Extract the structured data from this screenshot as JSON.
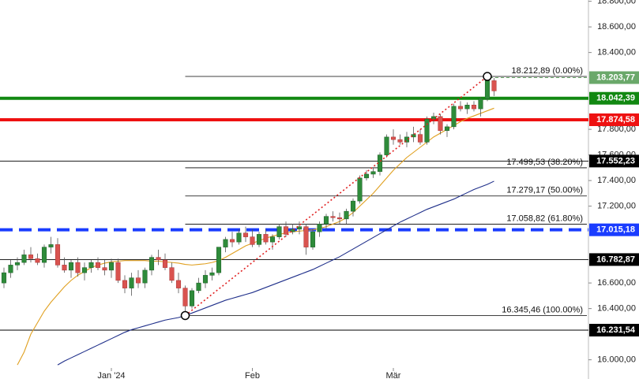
{
  "chart_data": {
    "type": "candlestick",
    "categories": [
      null,
      null,
      null,
      null,
      null,
      null,
      null,
      null,
      null,
      null,
      null,
      null,
      null,
      null,
      null,
      null,
      "Jan '24",
      null,
      null,
      null,
      null,
      null,
      null,
      null,
      null,
      null,
      null,
      null,
      null,
      null,
      null,
      null,
      null,
      null,
      null,
      null,
      null,
      "Feb",
      null,
      null,
      null,
      null,
      null,
      null,
      null,
      null,
      null,
      null,
      null,
      null,
      null,
      null,
      null,
      null,
      null,
      null,
      null,
      null,
      "Mär",
      null,
      null,
      null,
      null,
      null,
      null,
      null,
      null,
      null,
      null,
      null,
      null,
      null,
      null,
      null
    ],
    "open": [
      16600,
      16680,
      16740,
      16760,
      16820,
      16790,
      16760,
      16880,
      16900,
      16740,
      16700,
      16760,
      16680,
      16720,
      16760,
      16720,
      16700,
      16760,
      16620,
      16560,
      16640,
      16600,
      16700,
      16800,
      16780,
      16720,
      16620,
      16560,
      16420,
      16540,
      16600,
      16660,
      16680,
      16880,
      16940,
      16920,
      16990,
      16960,
      16900,
      16980,
      16920,
      16960,
      17040,
      17000,
      17020,
      17040,
      16880,
      17000,
      17060,
      17120,
      17110,
      17100,
      17160,
      17240,
      17420,
      17450,
      17470,
      17600,
      17740,
      17720,
      17700,
      17740,
      17760,
      17700,
      17880,
      17900,
      17790,
      17820,
      17980,
      17960,
      17990,
      17960,
      18040,
      18180
    ],
    "high": [
      16720,
      16780,
      16800,
      16860,
      16880,
      16830,
      16900,
      16960,
      16950,
      16800,
      16780,
      16800,
      16760,
      16780,
      16800,
      16780,
      16790,
      16790,
      16660,
      16680,
      16700,
      16720,
      16820,
      16860,
      16830,
      16760,
      16680,
      16580,
      16560,
      16640,
      16700,
      16720,
      16860,
      16960,
      17000,
      17020,
      17040,
      17020,
      17000,
      17020,
      16980,
      17060,
      17080,
      17060,
      17080,
      17060,
      17020,
      17080,
      17140,
      17160,
      17150,
      17180,
      17260,
      17440,
      17480,
      17500,
      17620,
      17760,
      17800,
      17760,
      17780,
      17820,
      17800,
      17900,
      17930,
      17920,
      17840,
      18000,
      18020,
      18010,
      18020,
      18050,
      18212,
      18200
    ],
    "low": [
      16560,
      16640,
      16700,
      16740,
      16760,
      16740,
      16720,
      16830,
      16720,
      16680,
      16640,
      16650,
      16620,
      16680,
      16700,
      16660,
      16640,
      16600,
      16520,
      16500,
      16560,
      16560,
      16660,
      16740,
      16700,
      16600,
      16520,
      16350,
      16400,
      16520,
      16560,
      16620,
      16660,
      16840,
      16880,
      16900,
      16920,
      16880,
      16880,
      16900,
      16860,
      16940,
      16960,
      16980,
      16980,
      16820,
      16860,
      16960,
      17020,
      17080,
      17060,
      17060,
      17120,
      17220,
      17400,
      17420,
      17440,
      17580,
      17680,
      17680,
      17660,
      17700,
      17680,
      17680,
      17840,
      17760,
      17740,
      17800,
      17940,
      17920,
      17940,
      17900,
      18020,
      18060
    ],
    "close": [
      16680,
      16740,
      16760,
      16820,
      16790,
      16760,
      16880,
      16900,
      16740,
      16700,
      16760,
      16680,
      16720,
      16760,
      16720,
      16700,
      16760,
      16620,
      16560,
      16640,
      16600,
      16700,
      16800,
      16780,
      16720,
      16620,
      16560,
      16420,
      16540,
      16600,
      16660,
      16680,
      16880,
      16940,
      16920,
      16990,
      16960,
      16900,
      16980,
      16920,
      16960,
      17040,
      16980,
      17020,
      17040,
      16880,
      17000,
      17060,
      17120,
      17110,
      17100,
      17160,
      17240,
      17420,
      17450,
      17470,
      17600,
      17740,
      17720,
      17700,
      17740,
      17760,
      17700,
      17880,
      17900,
      17790,
      17820,
      17980,
      17960,
      17990,
      17960,
      18040,
      18180,
      18100
    ],
    "up_color": "#2e8b3a",
    "down_color": "#d9534f",
    "lines": [
      {
        "color": "#e0a020",
        "values": [
          null,
          null,
          15960,
          16060,
          16200,
          16290,
          16380,
          16450,
          16510,
          16570,
          16620,
          16660,
          16690,
          16720,
          16740,
          16755,
          16765,
          16770,
          16775,
          16775,
          16775,
          16775,
          16770,
          16770,
          16765,
          16760,
          16755,
          16745,
          16740,
          16745,
          16750,
          16760,
          16775,
          16800,
          16830,
          16860,
          16890,
          16910,
          16930,
          16950,
          16965,
          16980,
          16990,
          17000,
          17005,
          17010,
          17015,
          17025,
          17040,
          17060,
          17080,
          17110,
          17150,
          17200,
          17250,
          17300,
          17360,
          17420,
          17480,
          17530,
          17580,
          17620,
          17660,
          17700,
          17740,
          17770,
          17800,
          17830,
          17860,
          17885,
          17905,
          17925,
          17945,
          17965
        ]
      },
      {
        "color": "#1f2f8a",
        "values": [
          null,
          null,
          null,
          null,
          null,
          null,
          null,
          null,
          15960,
          15990,
          16015,
          16040,
          16065,
          16090,
          16115,
          16140,
          16165,
          16190,
          16215,
          16235,
          16250,
          16265,
          16280,
          16295,
          16310,
          16320,
          16330,
          16345,
          16365,
          16385,
          16405,
          16425,
          16445,
          16465,
          16480,
          16495,
          16510,
          16525,
          16545,
          16565,
          16585,
          16605,
          16625,
          16645,
          16665,
          16685,
          16705,
          16730,
          16755,
          16780,
          16805,
          16835,
          16865,
          16895,
          16925,
          16955,
          16985,
          17015,
          17045,
          17075,
          17100,
          17125,
          17150,
          17175,
          17195,
          17215,
          17235,
          17255,
          17280,
          17305,
          17330,
          17350,
          17370,
          17395
        ]
      }
    ],
    "levels": [
      {
        "value": 16231.54,
        "label": "16.231,54",
        "color": "#000000",
        "style": "thin"
      },
      {
        "value": 16782.87,
        "label": "16.782,87",
        "color": "#000000",
        "style": "thin"
      },
      {
        "value": 17552.23,
        "label": "17.552,23",
        "color": "#000000",
        "style": "thin"
      },
      {
        "value": 18203.77,
        "label": "18.203,77",
        "color": "#6aa86a",
        "style": "short-dashed"
      },
      {
        "value": 17015.18,
        "label": "17.015,18",
        "color": "#1a3cff",
        "style": "dashed"
      },
      {
        "value": 17874.58,
        "label": "17.874,58",
        "color": "#ee1111",
        "style": "thick"
      },
      {
        "value": 18042.39,
        "label": "18.042,39",
        "color": "#118811",
        "style": "thick"
      }
    ],
    "fib_levels": [
      {
        "value": 18212.89,
        "label": "18.212,89 (0.00%)"
      },
      {
        "value": 17499.53,
        "label": "17.499,53 (38.20%)"
      },
      {
        "value": 17279.17,
        "label": "17.279,17 (50.00%)"
      },
      {
        "value": 17058.82,
        "label": "17.058,82 (61.80%)"
      },
      {
        "value": 16345.46,
        "label": "16.345,46 (100.00%)"
      }
    ],
    "fib_color": "#e02020",
    "ylim": [
      15850,
      18810
    ],
    "yticks": [
      {
        "value": 16000,
        "label": "16.000,00"
      },
      {
        "value": 16400,
        "label": "16.400,00"
      },
      {
        "value": 16600,
        "label": "16.600,00"
      },
      {
        "value": 17200,
        "label": "17.200,00"
      },
      {
        "value": 17400,
        "label": "17.400,00"
      },
      {
        "value": 17600,
        "label": "17.600,00"
      },
      {
        "value": 17800,
        "label": "17.800,00"
      },
      {
        "value": 18400,
        "label": "18.400,00"
      },
      {
        "value": 18600,
        "label": "18.600,00"
      },
      {
        "value": 18800,
        "label": "18.800,00"
      }
    ]
  }
}
